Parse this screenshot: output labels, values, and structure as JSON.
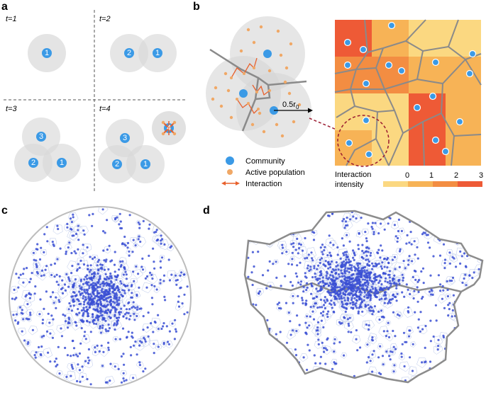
{
  "panels": {
    "a": {
      "label": "a",
      "quadrants": [
        {
          "time": "t=1",
          "communities": [
            "1"
          ]
        },
        {
          "time": "t=2",
          "communities": [
            "2",
            "1"
          ]
        },
        {
          "time": "t=3",
          "communities": [
            "3",
            "2",
            "1"
          ]
        },
        {
          "time": "t=4",
          "communities": [
            "3",
            "2",
            "1",
            "4"
          ]
        }
      ]
    },
    "b": {
      "label": "b",
      "radius_label": "0.5r",
      "radius_subscript": "0",
      "legend": {
        "community": "Community",
        "active_population": "Active population",
        "interaction": "Interaction"
      },
      "colorbar": {
        "title_line1": "Interaction",
        "title_line2": "intensity",
        "ticks": [
          "0",
          "1",
          "2",
          "3"
        ],
        "colors": [
          "#fbd881",
          "#f7b356",
          "#f38d42",
          "#ee5a36"
        ]
      }
    },
    "c": {
      "label": "c"
    },
    "d": {
      "label": "d"
    }
  },
  "colors": {
    "community": "#3b9ae6",
    "active_population": "#f0a866",
    "interaction": "#e8602c",
    "influence_circle": "#d9d9d9",
    "voronoi_edge": "#8a8a8a",
    "point_blue": "#3a4fd4",
    "boundary": "#8c8c8c"
  }
}
